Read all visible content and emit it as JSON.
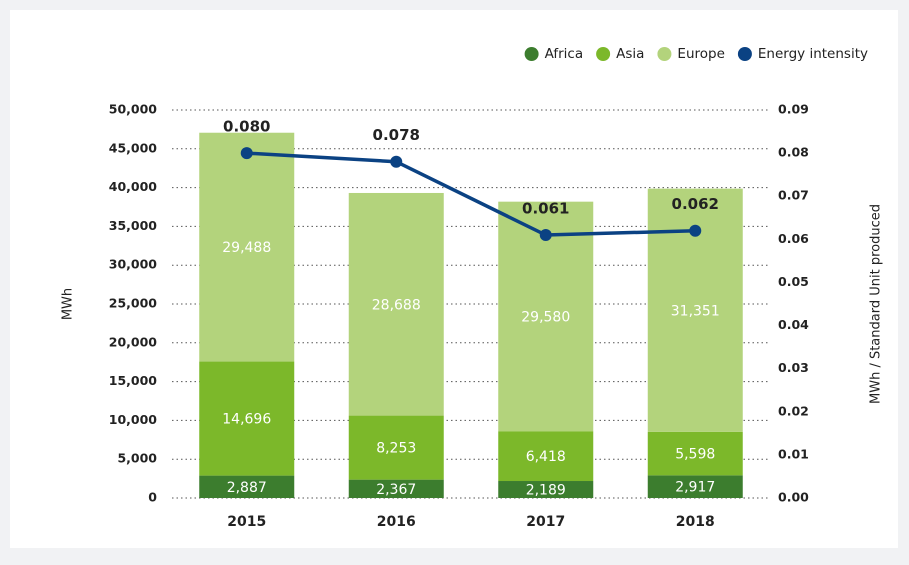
{
  "chart_data": {
    "type": "stacked-bar-line",
    "categories": [
      "2015",
      "2016",
      "2017",
      "2018"
    ],
    "series": [
      {
        "name": "Africa",
        "color": "#3c7d2e",
        "values": [
          2887,
          2367,
          2189,
          2917
        ],
        "value_labels": [
          "2,887",
          "2,367",
          "2,189",
          "2,917"
        ]
      },
      {
        "name": "Asia",
        "color": "#7cb82a",
        "values": [
          14696,
          8253,
          6418,
          5598
        ],
        "value_labels": [
          "14,696",
          "8,253",
          "6,418",
          "5,598"
        ]
      },
      {
        "name": "Europe",
        "color": "#b3d37c",
        "values": [
          29488,
          28688,
          29580,
          31351
        ],
        "value_labels": [
          "29,488",
          "28,688",
          "29,580",
          "31,351"
        ]
      },
      {
        "name": "Energy intensity",
        "color": "#0b4283",
        "axis": "y2",
        "type": "line",
        "values": [
          0.08,
          0.078,
          0.061,
          0.062
        ],
        "value_labels": [
          "0.080",
          "0.078",
          "0.061",
          "0.062"
        ]
      }
    ],
    "ylabel": "MWh",
    "y2label": "MWh / Standard Unit produced",
    "ylim": [
      0,
      50000
    ],
    "yticks": [
      0,
      {
        "value": 5000,
        "label": "5,000"
      },
      {
        "value": 10000,
        "label": "10,000"
      },
      {
        "value": 15000,
        "label": "15,000"
      },
      {
        "value": 20000,
        "label": "20,000"
      },
      {
        "value": 25000,
        "label": "25,000"
      },
      {
        "value": 30000,
        "label": "30,000"
      },
      {
        "value": 35000,
        "label": "35,000"
      },
      {
        "value": 40000,
        "label": "40,000"
      },
      {
        "value": 45000,
        "label": "45,000"
      },
      {
        "value": 50000,
        "label": "50,000"
      }
    ],
    "y2lim": [
      0,
      0.09
    ],
    "y2ticks": [
      {
        "value": 0,
        "label": "0.00"
      },
      {
        "value": 0.01,
        "label": "0.01"
      },
      {
        "value": 0.02,
        "label": "0.02"
      },
      {
        "value": 0.03,
        "label": "0.03"
      },
      {
        "value": 0.04,
        "label": "0.04"
      },
      {
        "value": 0.05,
        "label": "0.05"
      },
      {
        "value": 0.06,
        "label": "0.06"
      },
      {
        "value": 0.07,
        "label": "0.07"
      },
      {
        "value": 0.08,
        "label": "0.08"
      },
      {
        "value": 0.09,
        "label": "0.09"
      }
    ],
    "grid": true,
    "legend": "top-right"
  }
}
